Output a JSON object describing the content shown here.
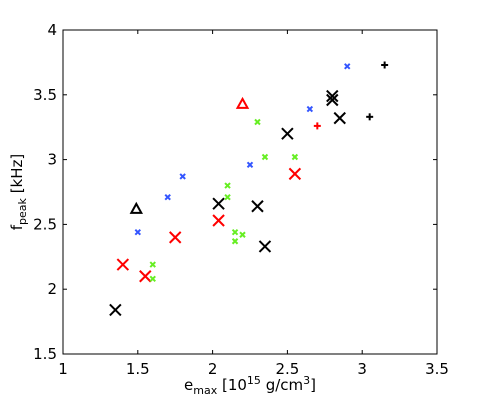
{
  "chart_data": {
    "type": "scatter",
    "xlabel": {
      "base": "e",
      "sub": "max",
      "pre": " [10",
      "sup1": "15",
      "mid": " g/cm",
      "sup2": "3",
      "post": "]"
    },
    "ylabel": {
      "base": "f",
      "sub": "peak",
      "post": " [kHz]"
    },
    "xlim": [
      1,
      3.5
    ],
    "ylim": [
      1.5,
      4
    ],
    "x_ticks": [
      "1",
      "1.5",
      "2",
      "2.5",
      "3",
      "3.5"
    ],
    "y_ticks": [
      "1.5",
      "2",
      "2.5",
      "3",
      "3.5",
      "4"
    ],
    "grid": false,
    "colors": {
      "black": "#000000",
      "red": "#ff0000",
      "blue": "#3355ff",
      "green": "#66ee22"
    },
    "series": [
      {
        "marker": "x-large",
        "color": "black",
        "points": [
          [
            1.35,
            1.84
          ],
          [
            2.04,
            2.66
          ],
          [
            2.3,
            2.64
          ],
          [
            2.35,
            2.33
          ],
          [
            2.5,
            3.2
          ],
          [
            2.8,
            3.49
          ],
          [
            2.8,
            3.46
          ],
          [
            2.85,
            3.32
          ]
        ]
      },
      {
        "marker": "x-large",
        "color": "red",
        "points": [
          [
            1.4,
            2.19
          ],
          [
            1.55,
            2.1
          ],
          [
            1.75,
            2.4
          ],
          [
            2.04,
            2.53
          ],
          [
            2.55,
            2.89
          ]
        ]
      },
      {
        "marker": "x-small",
        "color": "blue",
        "points": [
          [
            1.5,
            2.44
          ],
          [
            1.7,
            2.71
          ],
          [
            1.8,
            2.87
          ],
          [
            2.25,
            2.96
          ],
          [
            2.65,
            3.39
          ],
          [
            2.9,
            3.72
          ]
        ]
      },
      {
        "marker": "x-small",
        "color": "green",
        "points": [
          [
            1.6,
            2.19
          ],
          [
            1.6,
            2.08
          ],
          [
            2.1,
            2.8
          ],
          [
            2.1,
            2.71
          ],
          [
            2.15,
            2.44
          ],
          [
            2.15,
            2.37
          ],
          [
            2.2,
            2.42
          ],
          [
            2.3,
            3.29
          ],
          [
            2.35,
            3.02
          ],
          [
            2.55,
            3.02
          ]
        ]
      },
      {
        "marker": "plus",
        "color": "black",
        "points": [
          [
            3.05,
            3.33
          ],
          [
            3.15,
            3.73
          ]
        ]
      },
      {
        "marker": "plus",
        "color": "red",
        "points": [
          [
            2.7,
            3.26
          ]
        ]
      },
      {
        "marker": "triangle",
        "color": "black",
        "points": [
          [
            1.49,
            2.62
          ]
        ]
      },
      {
        "marker": "triangle",
        "color": "red",
        "points": [
          [
            2.2,
            3.43
          ]
        ]
      }
    ]
  }
}
